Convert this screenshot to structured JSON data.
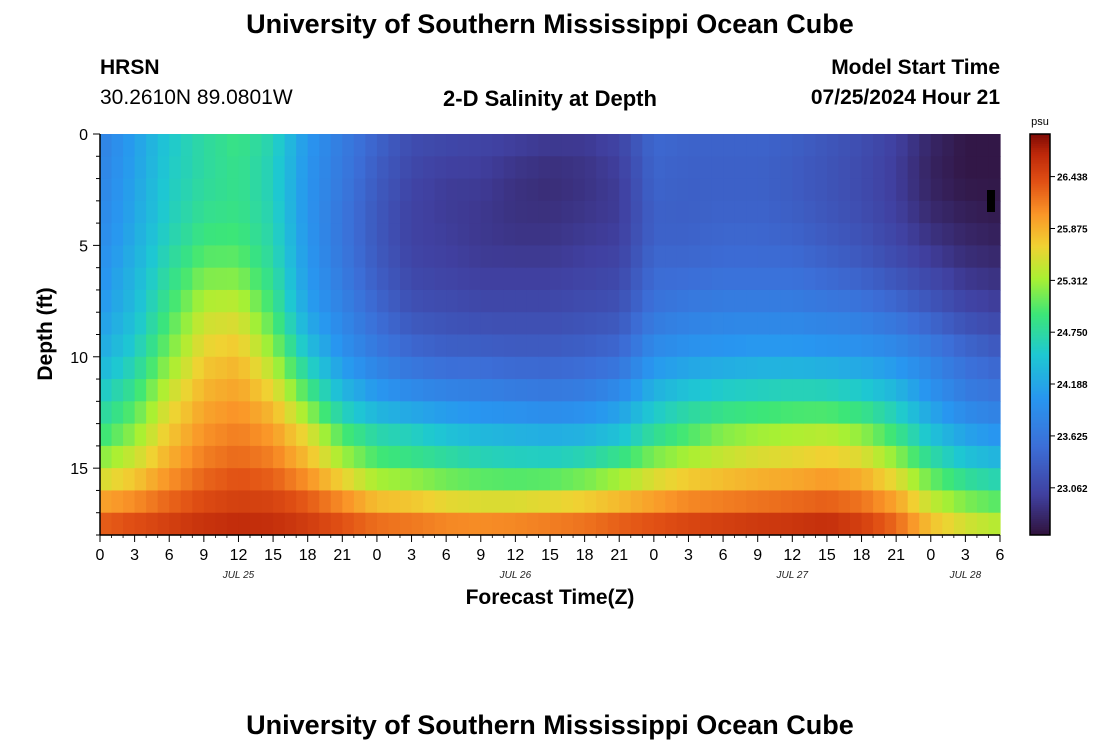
{
  "header": {
    "title": "University of Southern Mississippi Ocean Cube",
    "station": "HRSN",
    "coords": "30.2610N  89.0801W",
    "subtitle": "2-D Salinity at Depth",
    "model_label": "Model Start Time",
    "model_time": "07/25/2024 Hour 21"
  },
  "footer": {
    "title": "University of Southern Mississippi Ocean Cube"
  },
  "chart_data": {
    "type": "heatmap",
    "title": "2-D Salinity at Depth",
    "xlabel": "Forecast Time(Z)",
    "ylabel": "Depth (ft)",
    "x_ticks": [
      "0",
      "3",
      "6",
      "9",
      "12",
      "15",
      "18",
      "21",
      "0",
      "3",
      "6",
      "9",
      "12",
      "15",
      "18",
      "21",
      "0",
      "3",
      "6",
      "9",
      "12",
      "15",
      "18",
      "21",
      "0",
      "3",
      "6"
    ],
    "x_hours_range": [
      0,
      78
    ],
    "date_labels": [
      {
        "label": "JUL 25",
        "hour": 12
      },
      {
        "label": "JUL 26",
        "hour": 36
      },
      {
        "label": "JUL 27",
        "hour": 60
      },
      {
        "label": "JUL 28",
        "hour": 75
      }
    ],
    "y_ticks": [
      "0",
      "5",
      "10",
      "15"
    ],
    "y_tick_values": [
      0,
      5,
      10,
      15
    ],
    "ylim": [
      0,
      18
    ],
    "colorbar": {
      "unit": "psu",
      "ticks": [
        "26.438",
        "25.875",
        "25.312",
        "24.750",
        "24.188",
        "23.625",
        "23.062"
      ],
      "tick_values": [
        26.438,
        25.875,
        25.312,
        24.75,
        24.188,
        23.625,
        23.062
      ],
      "range": [
        22.55,
        26.9
      ]
    },
    "profile_hours": [
      0,
      3,
      6,
      9,
      12,
      15,
      18,
      21,
      24,
      27,
      30,
      33,
      36,
      39,
      42,
      45,
      48,
      51,
      54,
      57,
      60,
      63,
      66,
      69,
      72,
      75,
      78
    ],
    "profile_depths": [
      0,
      2,
      4,
      6,
      8,
      10,
      12,
      13.5,
      15,
      16,
      17,
      18
    ],
    "salinity": [
      [
        23.75,
        23.8,
        23.85,
        23.95,
        24.05,
        24.25,
        24.6,
        24.9,
        25.35,
        25.75,
        26.15,
        26.45
      ],
      [
        24.1,
        24.15,
        24.2,
        24.3,
        24.4,
        24.6,
        24.95,
        25.25,
        25.6,
        25.9,
        26.25,
        26.55
      ],
      [
        24.5,
        24.55,
        24.6,
        24.75,
        24.95,
        25.2,
        25.55,
        25.75,
        25.95,
        26.15,
        26.4,
        26.6
      ],
      [
        24.75,
        24.75,
        24.85,
        25.1,
        25.45,
        25.7,
        25.9,
        26.05,
        26.2,
        26.35,
        26.5,
        26.7
      ],
      [
        24.9,
        24.85,
        24.9,
        25.1,
        25.5,
        25.8,
        26.0,
        26.15,
        26.3,
        26.45,
        26.55,
        26.75
      ],
      [
        24.65,
        24.6,
        24.65,
        24.75,
        24.95,
        25.3,
        25.75,
        26.0,
        26.2,
        26.4,
        26.55,
        26.7
      ],
      [
        24.05,
        24.0,
        24.0,
        24.05,
        24.15,
        24.5,
        25.1,
        25.6,
        25.9,
        26.2,
        26.45,
        26.6
      ],
      [
        23.7,
        23.65,
        23.6,
        23.65,
        23.8,
        24.0,
        24.45,
        25.0,
        25.45,
        25.9,
        26.25,
        26.5
      ],
      [
        23.4,
        23.3,
        23.25,
        23.3,
        23.45,
        23.7,
        24.15,
        24.7,
        25.1,
        25.55,
        26.05,
        26.4
      ],
      [
        23.15,
        23.05,
        23.0,
        23.05,
        23.2,
        23.5,
        24.0,
        24.6,
        25.0,
        25.5,
        26.0,
        26.35
      ],
      [
        23.1,
        22.95,
        22.95,
        23.0,
        23.15,
        23.4,
        23.9,
        24.45,
        24.9,
        25.35,
        25.9,
        26.3
      ],
      [
        23.05,
        22.95,
        22.9,
        22.95,
        23.1,
        23.4,
        23.85,
        24.35,
        24.8,
        25.3,
        25.85,
        26.3
      ],
      [
        23.0,
        22.85,
        22.85,
        22.95,
        23.1,
        23.35,
        23.8,
        24.3,
        24.75,
        25.3,
        25.85,
        26.35
      ],
      [
        22.95,
        22.8,
        22.85,
        22.95,
        23.1,
        23.35,
        23.75,
        24.25,
        24.75,
        25.35,
        25.9,
        26.4
      ],
      [
        22.95,
        22.85,
        22.9,
        23.0,
        23.15,
        23.4,
        23.8,
        24.3,
        24.85,
        25.45,
        25.95,
        26.45
      ],
      [
        23.05,
        22.95,
        22.95,
        23.05,
        23.2,
        23.5,
        24.0,
        24.45,
        25.05,
        25.6,
        26.05,
        26.55
      ],
      [
        23.45,
        23.4,
        23.35,
        23.45,
        23.6,
        23.95,
        24.4,
        24.8,
        25.35,
        25.8,
        26.15,
        26.6
      ],
      [
        23.4,
        23.35,
        23.35,
        23.45,
        23.7,
        24.05,
        24.6,
        25.0,
        25.5,
        25.95,
        26.25,
        26.65
      ],
      [
        23.4,
        23.35,
        23.4,
        23.5,
        23.75,
        24.1,
        24.7,
        25.2,
        25.6,
        26.0,
        26.3,
        26.7
      ],
      [
        23.4,
        23.35,
        23.4,
        23.5,
        23.75,
        24.15,
        24.75,
        25.3,
        25.7,
        26.05,
        26.35,
        26.75
      ],
      [
        23.35,
        23.3,
        23.35,
        23.5,
        23.75,
        24.15,
        24.8,
        25.35,
        25.75,
        26.1,
        26.4,
        26.75
      ],
      [
        23.25,
        23.2,
        23.25,
        23.4,
        23.7,
        24.1,
        24.8,
        25.4,
        25.85,
        26.15,
        26.45,
        26.8
      ],
      [
        23.15,
        23.1,
        23.15,
        23.3,
        23.65,
        24.05,
        24.7,
        25.25,
        25.75,
        26.05,
        26.35,
        26.65
      ],
      [
        23.0,
        22.95,
        23.0,
        23.15,
        23.5,
        23.95,
        24.45,
        24.9,
        25.4,
        25.8,
        26.1,
        26.4
      ],
      [
        22.75,
        22.7,
        22.8,
        23.0,
        23.3,
        23.75,
        24.05,
        24.45,
        24.9,
        25.3,
        25.6,
        25.95
      ],
      [
        22.6,
        22.6,
        22.7,
        22.85,
        23.1,
        23.5,
        23.75,
        24.15,
        24.6,
        25.0,
        25.35,
        25.7
      ],
      [
        22.6,
        22.6,
        22.65,
        22.8,
        23.0,
        23.35,
        23.65,
        24.0,
        24.45,
        24.85,
        25.2,
        25.55
      ]
    ]
  }
}
